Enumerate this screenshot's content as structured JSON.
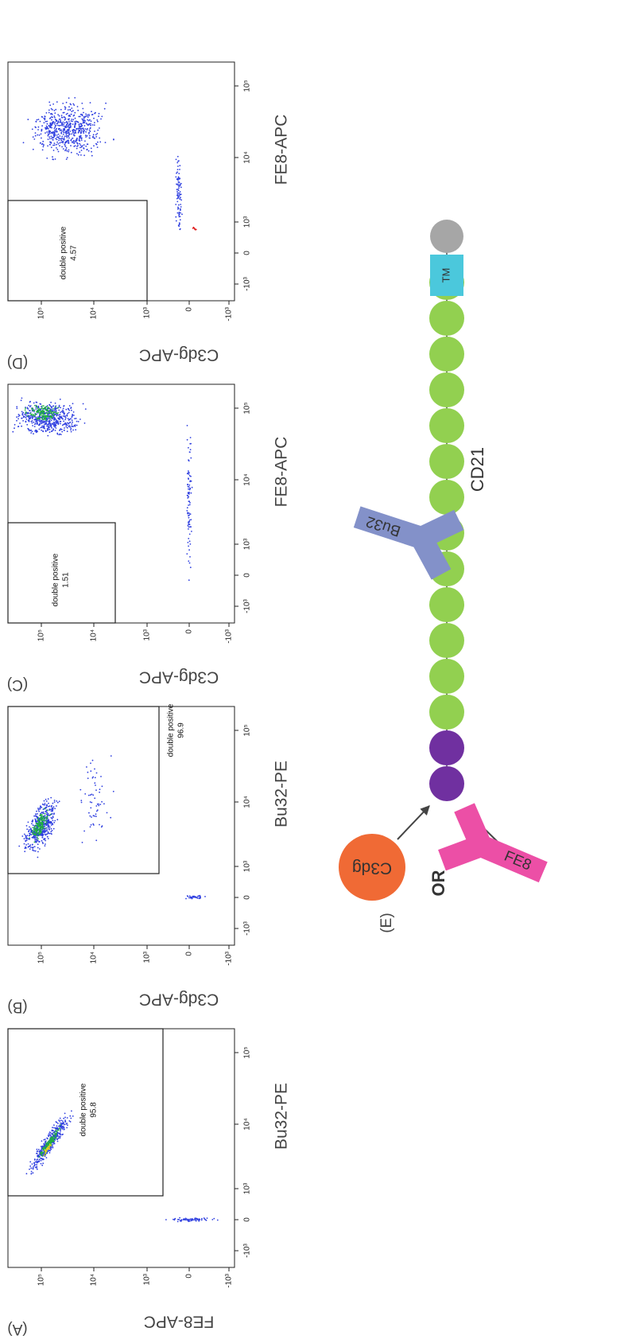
{
  "panels": [
    {
      "label": "(A)",
      "y_axis_title": "FE8-APC",
      "x_axis_title": "Bu32-PE",
      "gate_name": "double positive",
      "gate_value": "95.8"
    },
    {
      "label": "(B)",
      "y_axis_title": "C3dg-APC",
      "x_axis_title": "Bu32-PE",
      "gate_name": "double positive",
      "gate_value": "96.9"
    },
    {
      "label": "(C)",
      "y_axis_title": "C3dg-APC",
      "x_axis_title": "FE8-APC",
      "gate_name": "double positive",
      "gate_value": "1.51"
    },
    {
      "label": "(D)",
      "y_axis_title": "C3dg-APC",
      "x_axis_title": "FE8-APC",
      "gate_name": "double positive",
      "gate_value": "4.57"
    }
  ],
  "tick_labels": [
    "-10³",
    "0",
    "10³",
    "10⁴",
    "10⁵"
  ],
  "diagram": {
    "label": "(E)",
    "or": "OR",
    "ligand": "C3dg",
    "antibody_1": "FE8",
    "antibody_2": "Bu32",
    "receptor": "CD21",
    "tm": "TM"
  }
}
